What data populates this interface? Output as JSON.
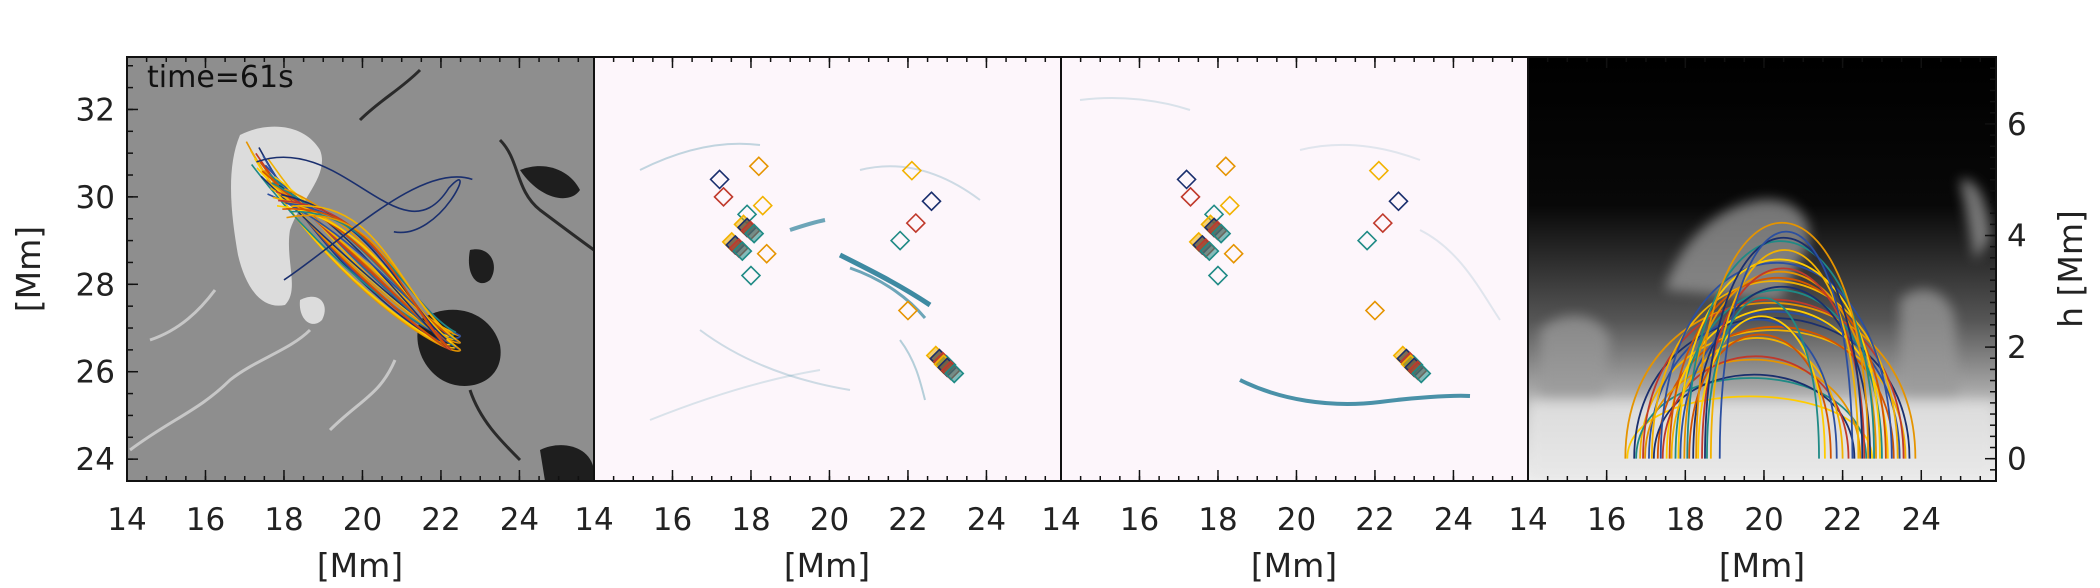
{
  "figure": {
    "time_label": "time=61s"
  },
  "colors": {
    "fieldlines": [
      "#e59400",
      "#f2b200",
      "#ffcc00",
      "#1a2f6e",
      "#2b4fa0",
      "#1f8a85",
      "#c0392b",
      "#d35400"
    ],
    "diamonds": [
      "#1a2f6e",
      "#c0392b",
      "#1f8a85",
      "#e59400",
      "#f2b200"
    ],
    "current_tint": "#0e6f8c"
  },
  "chart_data": [
    {
      "type": "scatter",
      "panel": "magnetogram",
      "title": "",
      "xlabel": "[Mm]",
      "ylabel": "[Mm]",
      "xlim": [
        14,
        25.9
      ],
      "ylim": [
        23.5,
        33.2
      ],
      "xticks": [
        "14",
        "16",
        "18",
        "20",
        "22",
        "24"
      ],
      "yticks": [
        "24",
        "26",
        "28",
        "30",
        "32"
      ],
      "annotation": "time=61s",
      "series": [
        {
          "values": [
            [
              17.5,
              30.5
            ],
            [
              18.6,
              29.6
            ],
            [
              20.5,
              28.3
            ],
            [
              22.5,
              26.5
            ]
          ]
        }
      ]
    },
    {
      "type": "scatter",
      "panel": "current-map-1",
      "xlabel": "[Mm]",
      "xlim": [
        14,
        25.9
      ],
      "ylim": [
        23.5,
        33.2
      ],
      "xticks": [
        "14",
        "16",
        "18",
        "20",
        "22",
        "24"
      ],
      "series": [
        {
          "values": [
            [
              17.2,
              30.4
            ],
            [
              17.3,
              30.0
            ],
            [
              17.9,
              29.6
            ],
            [
              18.2,
              30.7
            ],
            [
              18.3,
              29.8
            ],
            [
              17.9,
              29.3
            ],
            [
              17.6,
              28.9
            ],
            [
              18.0,
              28.2
            ],
            [
              18.4,
              28.7
            ],
            [
              22.1,
              30.6
            ],
            [
              22.6,
              29.9
            ],
            [
              22.2,
              29.4
            ],
            [
              21.8,
              29.0
            ],
            [
              22.0,
              27.4
            ],
            [
              22.8,
              26.3
            ],
            [
              23.0,
              26.1
            ]
          ]
        }
      ]
    },
    {
      "type": "scatter",
      "panel": "current-map-2",
      "xlabel": "[Mm]",
      "xlim": [
        14,
        25.9
      ],
      "ylim": [
        23.5,
        33.2
      ],
      "xticks": [
        "14",
        "16",
        "18",
        "20",
        "22",
        "24"
      ],
      "series": [
        {
          "values": [
            [
              17.2,
              30.4
            ],
            [
              17.3,
              30.0
            ],
            [
              17.9,
              29.6
            ],
            [
              18.2,
              30.7
            ],
            [
              18.3,
              29.8
            ],
            [
              17.9,
              29.3
            ],
            [
              17.6,
              28.9
            ],
            [
              18.0,
              28.2
            ],
            [
              18.4,
              28.7
            ],
            [
              22.1,
              30.6
            ],
            [
              22.6,
              29.9
            ],
            [
              22.2,
              29.4
            ],
            [
              21.8,
              29.0
            ],
            [
              22.0,
              27.4
            ],
            [
              22.8,
              26.3
            ],
            [
              23.0,
              26.1
            ]
          ]
        }
      ]
    },
    {
      "type": "line",
      "panel": "side-view",
      "xlabel": "[Mm]",
      "ylabel": "h [Mm]",
      "xlim": [
        14,
        25.9
      ],
      "ylim": [
        -0.4,
        7.2
      ],
      "xticks": [
        "14",
        "16",
        "18",
        "20",
        "22",
        "24"
      ],
      "yticks": [
        "0",
        "2",
        "4",
        "6"
      ],
      "series": [
        {
          "values": [
            [
              17.6,
              0
            ],
            [
              20.3,
              3.7
            ],
            [
              23.1,
              0
            ]
          ]
        },
        {
          "values": [
            [
              17.9,
              0
            ],
            [
              20.4,
              3.3
            ],
            [
              22.9,
              0
            ]
          ]
        },
        {
          "values": [
            [
              17.5,
              0
            ],
            [
              19.8,
              2.2
            ],
            [
              22.1,
              0
            ]
          ]
        }
      ]
    }
  ]
}
